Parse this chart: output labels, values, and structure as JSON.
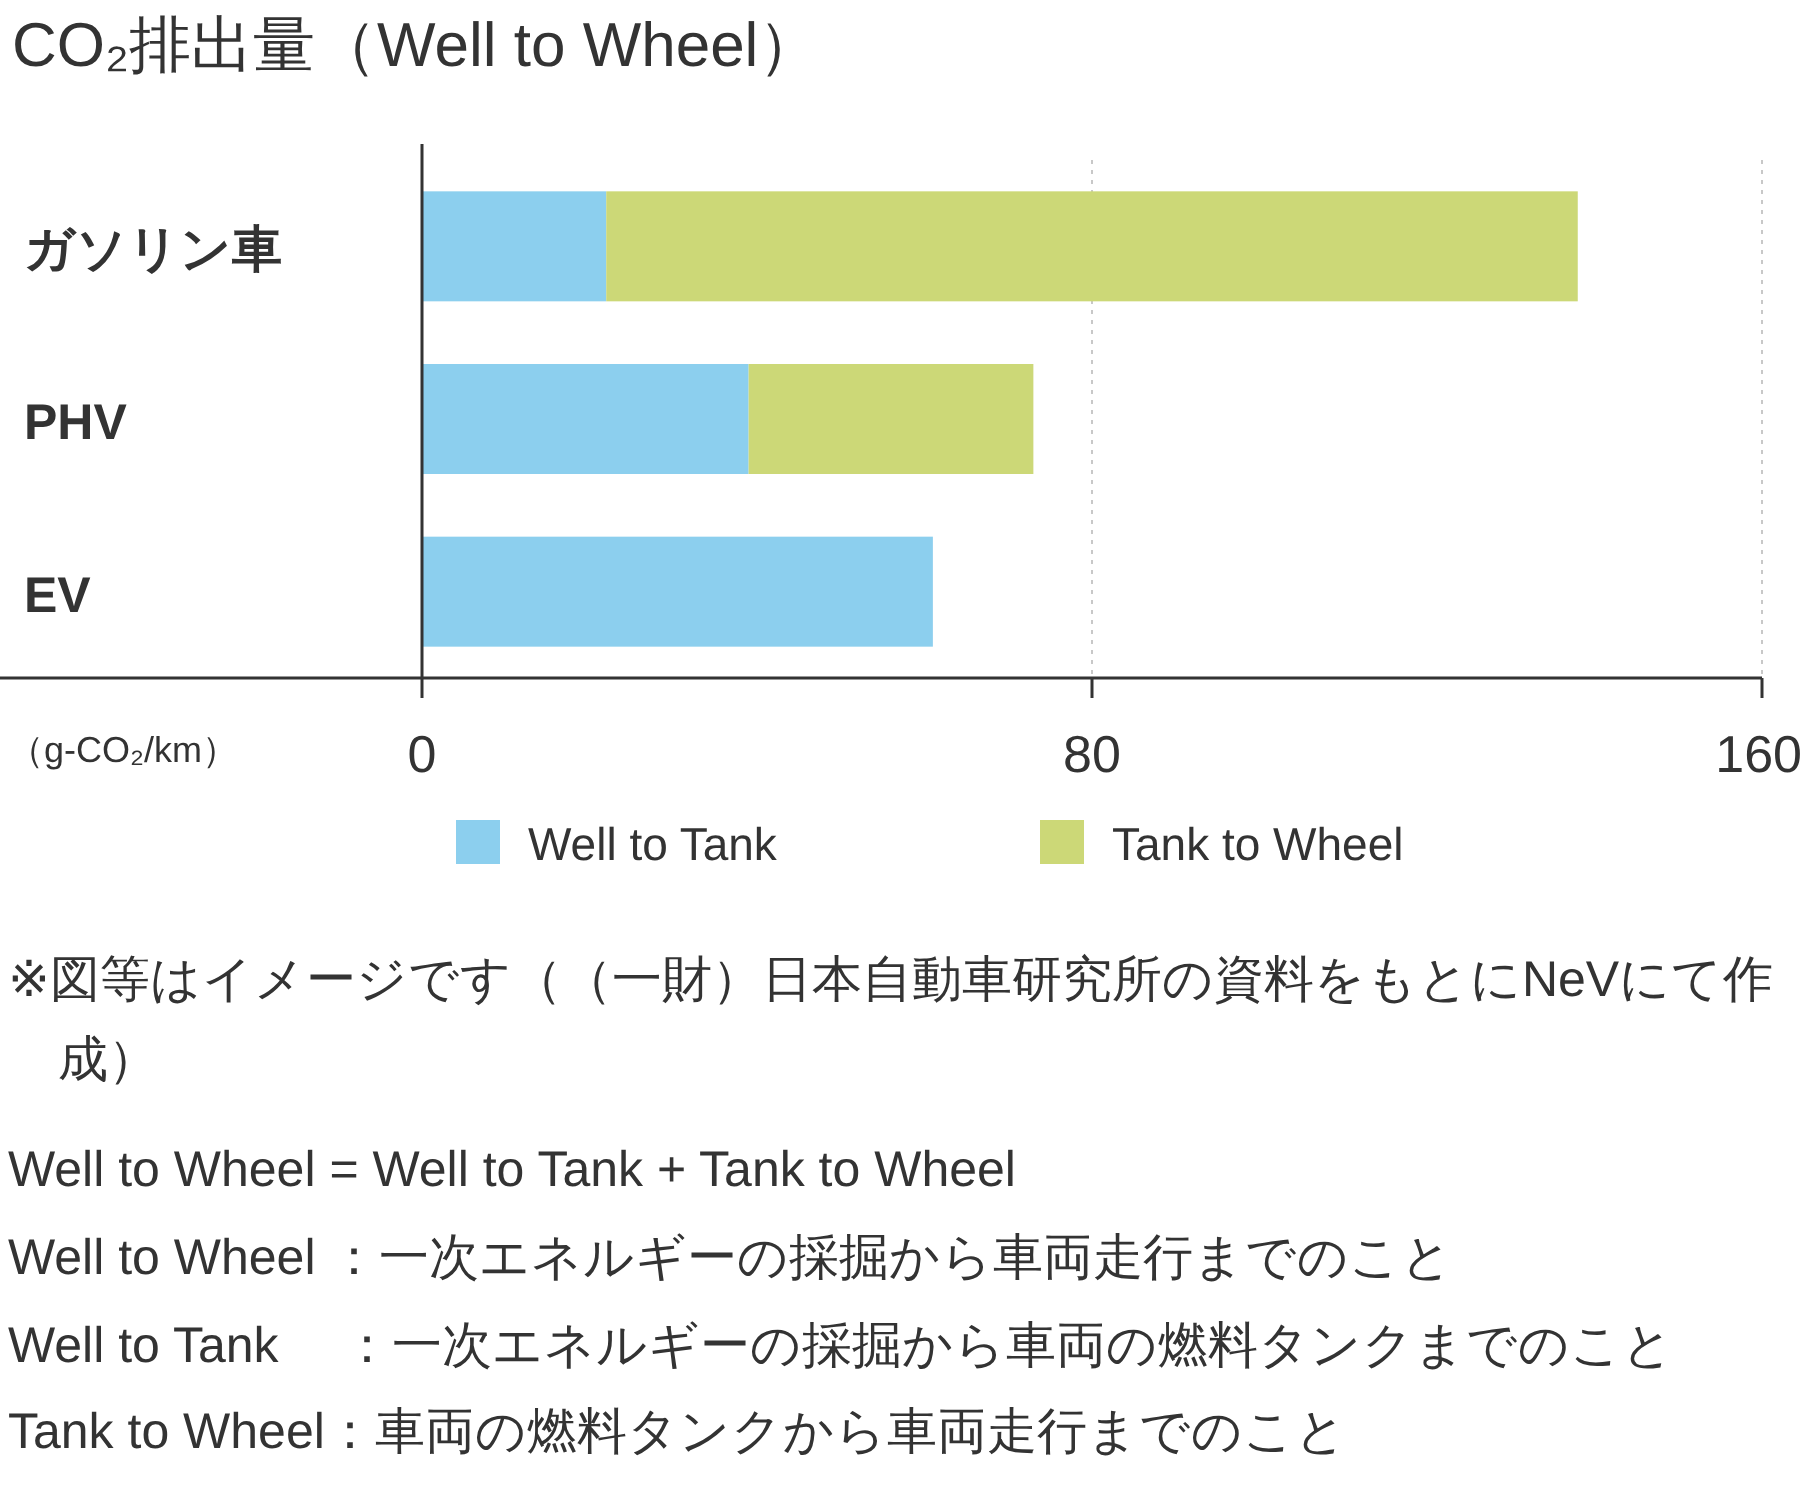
{
  "chart_data": {
    "type": "bar",
    "orientation": "horizontal",
    "stacked": true,
    "title": "CO₂排出量（Well to Wheel）",
    "xlabel": "（g-CO₂/km）",
    "categories": [
      "ガソリン車",
      "PHV",
      "EV"
    ],
    "series": [
      {
        "name": "Well to Tank",
        "color": "#8ccfee",
        "values": [
          22,
          39,
          61
        ]
      },
      {
        "name": "Tank to Wheel",
        "color": "#ccd877",
        "values": [
          116,
          34,
          null
        ]
      }
    ],
    "xlim": [
      0,
      160
    ],
    "xticks": [
      0,
      80,
      160
    ],
    "grid": "x",
    "legend": "bottom",
    "annotations": [
      "※図等はイメージです（（一財）日本自動車研究所の資料をもとにNeVにて作成）",
      "Well to Wheel = Well to Tank + Tank to Wheel",
      "Well to Wheel ：一次エネルギーの採掘から車両走行までのこと",
      "Well to Tank　 ：一次エネルギーの採掘から車両の燃料タンクまでのこと",
      "Tank to Wheel：車両の燃料タンクから車両走行までのこと"
    ]
  }
}
